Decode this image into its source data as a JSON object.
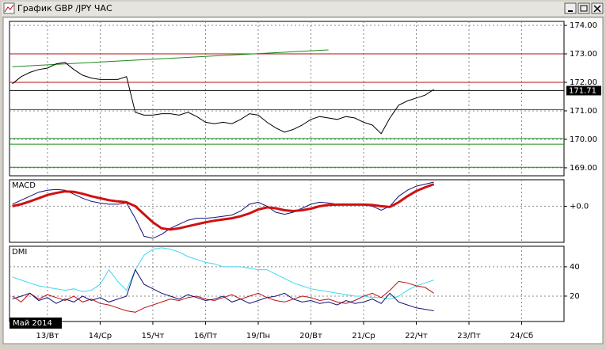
{
  "window": {
    "title": "График GBP /JPY ЧАС",
    "period_label": "Май 2014"
  },
  "chart_data": [
    {
      "type": "line",
      "title": null,
      "x": [
        -16,
        -12,
        -8,
        -4,
        0,
        4,
        8,
        12,
        16,
        20,
        24,
        28,
        32,
        36,
        40,
        44,
        48,
        52,
        56,
        60,
        64,
        68,
        72,
        76,
        80,
        84,
        88,
        92,
        96,
        100,
        104,
        108,
        112,
        116,
        120,
        124,
        128,
        132,
        136,
        140,
        144,
        148,
        152,
        156,
        160,
        164,
        168,
        172,
        176
      ],
      "series": [
        {
          "color": "#000000",
          "values": [
            171.95,
            172.2,
            172.35,
            172.45,
            172.5,
            172.65,
            172.7,
            172.45,
            172.25,
            172.15,
            172.1,
            172.1,
            172.1,
            172.2,
            170.95,
            170.85,
            170.85,
            170.9,
            170.9,
            170.85,
            170.95,
            170.8,
            170.6,
            170.55,
            170.6,
            170.55,
            170.7,
            170.9,
            170.85,
            170.6,
            170.4,
            170.25,
            170.35,
            170.5,
            170.7,
            170.8,
            170.75,
            170.7,
            170.8,
            170.75,
            170.6,
            170.5,
            170.2,
            170.75,
            171.2,
            171.35,
            171.45,
            171.55,
            171.75
          ]
        }
      ],
      "last_price": 171.71,
      "levels": [
        {
          "value": 173.0,
          "color": "#b01010"
        },
        {
          "value": 172.0,
          "color": "#b01010"
        },
        {
          "value": 171.04,
          "color": "#1a8a1a"
        },
        {
          "value": 170.03,
          "color": "#1a8a1a"
        },
        {
          "value": 169.83,
          "color": "#1a8a1a"
        },
        {
          "value": 169.02,
          "color": "#1a8a1a"
        }
      ],
      "trendline": {
        "x": [
          -16,
          128
        ],
        "values": [
          172.55,
          173.14
        ],
        "color": "#1a8a1a"
      },
      "xlim": [
        -17.3,
        235.3
      ],
      "ylim": [
        168.72,
        174.14
      ],
      "yticks": [
        {
          "value": 169,
          "label": "169.00"
        },
        {
          "value": 170,
          "label": "170.00"
        },
        {
          "value": 171,
          "label": "171.00"
        },
        {
          "value": 172,
          "label": "172.00"
        },
        {
          "value": 173,
          "label": "173.00"
        },
        {
          "value": 174,
          "label": "174.00"
        }
      ],
      "grid": true
    },
    {
      "type": "line",
      "title": "MACD",
      "x": [
        -16,
        -12,
        -8,
        -4,
        0,
        4,
        8,
        12,
        16,
        20,
        24,
        28,
        32,
        36,
        40,
        44,
        48,
        52,
        56,
        60,
        64,
        68,
        72,
        76,
        80,
        84,
        88,
        92,
        96,
        100,
        104,
        108,
        112,
        116,
        120,
        124,
        128,
        132,
        136,
        140,
        144,
        148,
        152,
        156,
        160,
        164,
        168,
        172,
        176
      ],
      "series": [
        {
          "color": "#10107a",
          "width": 1,
          "values": [
            0.05,
            0.15,
            0.25,
            0.35,
            0.4,
            0.42,
            0.4,
            0.3,
            0.2,
            0.12,
            0.08,
            0.05,
            0.05,
            0.08,
            -0.3,
            -0.75,
            -0.8,
            -0.7,
            -0.55,
            -0.45,
            -0.35,
            -0.3,
            -0.3,
            -0.28,
            -0.25,
            -0.22,
            -0.12,
            0.05,
            0.1,
            0.0,
            -0.15,
            -0.2,
            -0.15,
            -0.05,
            0.05,
            0.1,
            0.08,
            0.05,
            0.05,
            0.04,
            0.03,
            0.0,
            -0.1,
            0.0,
            0.25,
            0.4,
            0.5,
            0.55,
            0.6
          ]
        },
        {
          "color": "#d01010",
          "width": 3,
          "values": [
            0.0,
            0.05,
            0.12,
            0.2,
            0.28,
            0.33,
            0.37,
            0.36,
            0.31,
            0.25,
            0.2,
            0.15,
            0.12,
            0.1,
            0.0,
            -0.2,
            -0.4,
            -0.55,
            -0.58,
            -0.55,
            -0.5,
            -0.45,
            -0.4,
            -0.36,
            -0.33,
            -0.3,
            -0.25,
            -0.18,
            -0.08,
            -0.03,
            -0.05,
            -0.1,
            -0.12,
            -0.1,
            -0.06,
            0.0,
            0.03,
            0.04,
            0.04,
            0.04,
            0.04,
            0.03,
            0.0,
            -0.02,
            0.1,
            0.25,
            0.38,
            0.47,
            0.55
          ]
        }
      ],
      "xlim": [
        -17.3,
        235.3
      ],
      "ylim": [
        -0.9,
        0.66
      ],
      "yticks": [
        {
          "value": 0,
          "label": "+0.0"
        }
      ],
      "grid": true
    },
    {
      "type": "line",
      "title": "DMI",
      "x": [
        -16,
        -12,
        -8,
        -4,
        0,
        4,
        8,
        12,
        16,
        20,
        24,
        28,
        32,
        36,
        40,
        44,
        48,
        52,
        56,
        60,
        64,
        68,
        72,
        76,
        80,
        84,
        88,
        92,
        96,
        100,
        104,
        108,
        112,
        116,
        120,
        124,
        128,
        132,
        136,
        140,
        144,
        148,
        152,
        156,
        160,
        164,
        168,
        172,
        176
      ],
      "series": [
        {
          "color": "#40d8f0",
          "width": 1,
          "values": [
            33,
            31,
            29,
            27,
            26,
            25,
            24,
            25,
            23,
            24,
            28,
            38,
            30,
            24,
            38,
            48,
            52,
            53,
            52,
            50,
            47,
            45,
            43,
            42,
            40,
            40,
            40,
            39,
            38,
            38,
            35,
            32,
            29,
            27,
            25,
            24,
            23,
            22,
            21,
            20,
            20,
            19,
            19,
            18,
            20,
            24,
            27,
            29,
            31
          ]
        },
        {
          "color": "#c01010",
          "width": 1,
          "values": [
            20,
            16,
            22,
            18,
            21,
            19,
            17,
            20,
            16,
            18,
            15,
            14,
            12,
            10,
            9,
            12,
            14,
            16,
            18,
            17,
            19,
            20,
            18,
            17,
            19,
            21,
            18,
            20,
            22,
            19,
            17,
            16,
            18,
            20,
            19,
            17,
            18,
            16,
            15,
            17,
            20,
            22,
            19,
            24,
            30,
            29,
            27,
            26,
            22
          ]
        },
        {
          "color": "#10107a",
          "width": 1,
          "values": [
            18,
            20,
            22,
            17,
            19,
            15,
            18,
            16,
            20,
            17,
            19,
            16,
            18,
            20,
            38,
            28,
            25,
            22,
            20,
            18,
            21,
            19,
            17,
            18,
            20,
            16,
            18,
            15,
            17,
            19,
            20,
            22,
            18,
            16,
            17,
            15,
            16,
            14,
            17,
            15,
            16,
            18,
            15,
            22,
            16,
            14,
            12,
            11,
            10
          ]
        }
      ],
      "xlim": [
        -17.3,
        235.3
      ],
      "ylim": [
        2.7,
        54
      ],
      "yticks": [
        20,
        40
      ],
      "grid": true,
      "xticks": [
        {
          "value": 0,
          "label": "13/Вт"
        },
        {
          "value": 24,
          "label": "14/Ср"
        },
        {
          "value": 48,
          "label": "15/Чт"
        },
        {
          "value": 72,
          "label": "16/Пт"
        },
        {
          "value": 96,
          "label": "19/Пн"
        },
        {
          "value": 120,
          "label": "20/Вт"
        },
        {
          "value": 144,
          "label": "21/Ср"
        },
        {
          "value": 168,
          "label": "22/Чт"
        },
        {
          "value": 192,
          "label": "23/Пт"
        },
        {
          "value": 216,
          "label": "24/Сб"
        }
      ]
    }
  ]
}
